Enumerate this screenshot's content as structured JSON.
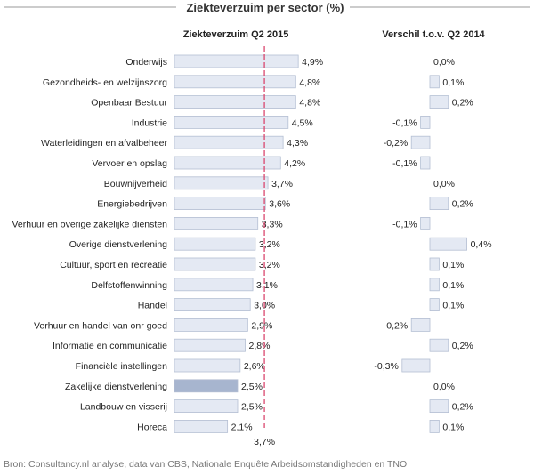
{
  "chart_data": {
    "type": "bar",
    "title": "Ziekteverzuim per sector (%)",
    "source": "Bron: Consultancy.nl analyse, data van CBS, Nationale Enquête Arbeidsomstandigheden en TNO",
    "categories": [
      "Onderwijs",
      "Gezondheids- en welzijnszorg",
      "Openbaar Bestuur",
      "Industrie",
      "Waterleidingen en afvalbeheer",
      "Vervoer en opslag",
      "Bouwnijverheid",
      "Energiebedrijven",
      "Verhuur en overige zakelijke diensten",
      "Overige dienstverlening",
      "Cultuur, sport en recreatie",
      "Delfstoffenwinning",
      "Handel",
      "Verhuur en handel van onr goed",
      "Informatie en communicatie",
      "Financiële instellingen",
      "Zakelijke dienstverlening",
      "Landbouw en visserij",
      "Horeca"
    ],
    "series": [
      {
        "name": "Ziekteverzuim Q2 2015",
        "values": [
          4.9,
          4.8,
          4.8,
          4.5,
          4.3,
          4.2,
          3.7,
          3.6,
          3.3,
          3.2,
          3.2,
          3.1,
          3.0,
          2.9,
          2.8,
          2.6,
          2.5,
          2.5,
          2.1
        ],
        "labels": [
          "4,9%",
          "4,8%",
          "4,8%",
          "4,5%",
          "4,3%",
          "4,2%",
          "3,7%",
          "3,6%",
          "3,3%",
          "3,2%",
          "3,2%",
          "3,1%",
          "3,0%",
          "2,9%",
          "2,8%",
          "2,6%",
          "2,5%",
          "2,5%",
          "2,1%"
        ]
      },
      {
        "name": "Verschil t.o.v. Q2 2014",
        "values": [
          0.0,
          0.1,
          0.2,
          -0.1,
          -0.2,
          -0.1,
          0.0,
          0.2,
          -0.1,
          0.4,
          0.1,
          0.1,
          0.1,
          -0.2,
          0.2,
          -0.3,
          0.0,
          0.2,
          0.1
        ],
        "labels": [
          "0,0%",
          "0,1%",
          "0,2%",
          "-0,1%",
          "-0,2%",
          "-0,1%",
          "0,0%",
          "0,2%",
          "-0,1%",
          "0,4%",
          "0,1%",
          "0,1%",
          "0,1%",
          "-0,2%",
          "0,2%",
          "-0,3%",
          "0,0%",
          "0,2%",
          "0,1%"
        ]
      }
    ],
    "highlight_category": "Zakelijke dienstverlening",
    "average": {
      "value": 3.7,
      "label": "3,7%"
    },
    "colors": {
      "bar": "#e4e9f3",
      "bar_stroke": "#b4bfd3",
      "highlight": "#a7b5cf",
      "average_line": "#d9476e",
      "title_rule": "#999999"
    }
  }
}
